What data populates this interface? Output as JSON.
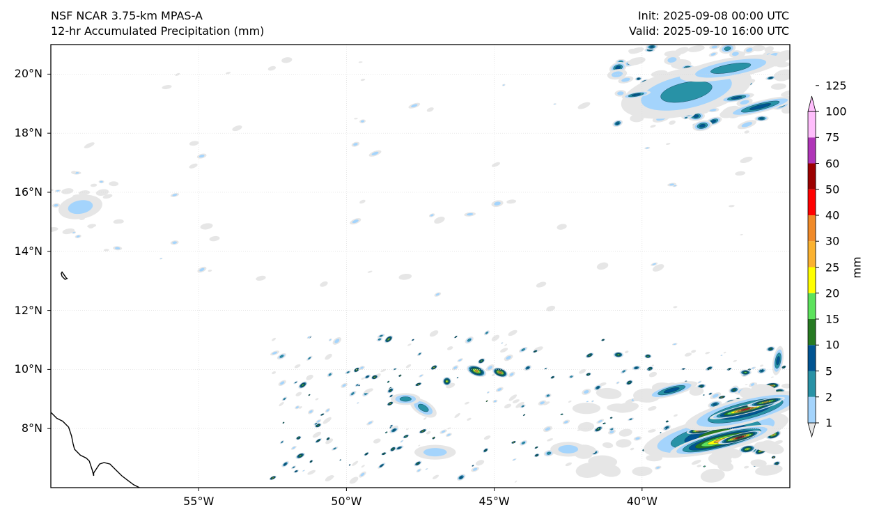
{
  "header": {
    "model": "NSF NCAR 3.75-km MPAS-A",
    "field": "12-hr Accumulated Precipitation (mm)",
    "init": "Init: 2025-09-08 00:00 UTC",
    "valid": "Valid: 2025-09-10 16:00 UTC"
  },
  "map": {
    "extent": {
      "lon_min": -60,
      "lon_max": -35,
      "lat_min": 6,
      "lat_max": 21
    },
    "lat_ticks": [
      {
        "value": 8,
        "label": "8°N"
      },
      {
        "value": 10,
        "label": "10°N"
      },
      {
        "value": 12,
        "label": "12°N"
      },
      {
        "value": 14,
        "label": "14°N"
      },
      {
        "value": 16,
        "label": "16°N"
      },
      {
        "value": 18,
        "label": "18°N"
      },
      {
        "value": 20,
        "label": "20°N"
      }
    ],
    "lon_ticks": [
      {
        "value": -55,
        "label": "55°W"
      },
      {
        "value": -50,
        "label": "50°W"
      },
      {
        "value": -45,
        "label": "45°W"
      },
      {
        "value": -40,
        "label": "40°W"
      }
    ],
    "coastline": [
      [
        -60,
        8.55
      ],
      [
        -59.8,
        8.35
      ],
      [
        -59.7,
        8.3
      ],
      [
        -59.6,
        8.25
      ],
      [
        -59.4,
        8.05
      ],
      [
        -59.3,
        7.75
      ],
      [
        -59.25,
        7.5
      ],
      [
        -59.2,
        7.3
      ],
      [
        -59.0,
        7.1
      ],
      [
        -58.8,
        7.0
      ],
      [
        -58.7,
        6.9
      ],
      [
        -58.6,
        6.6
      ],
      [
        -58.55,
        6.4
      ],
      [
        -58.55,
        6.5
      ],
      [
        -58.35,
        6.8
      ],
      [
        -58.2,
        6.85
      ],
      [
        -58.0,
        6.8
      ],
      [
        -57.8,
        6.6
      ],
      [
        -57.6,
        6.4
      ],
      [
        -57.4,
        6.25
      ],
      [
        -57.2,
        6.1
      ],
      [
        -57.0,
        6.0
      ]
    ],
    "island": [
      [
        -59.62,
        13.3
      ],
      [
        -59.55,
        13.2
      ],
      [
        -59.48,
        13.1
      ],
      [
        -59.45,
        13.08
      ],
      [
        -59.52,
        13.05
      ],
      [
        -59.62,
        13.15
      ],
      [
        -59.65,
        13.25
      ],
      [
        -59.62,
        13.3
      ]
    ],
    "cells": [
      {
        "lon": -37.5,
        "lat": 7.8,
        "w": 5.0,
        "h": 1.2,
        "rot": -12,
        "level": 4
      },
      {
        "lon": -37.3,
        "lat": 7.6,
        "w": 3.6,
        "h": 0.6,
        "rot": -14,
        "level": 7
      },
      {
        "lon": -36.7,
        "lat": 7.7,
        "w": 1.5,
        "h": 0.25,
        "rot": -15,
        "level": 10
      },
      {
        "lon": -38.0,
        "lat": 7.95,
        "w": 1.0,
        "h": 0.22,
        "rot": -10,
        "level": 10
      },
      {
        "lon": -36.5,
        "lat": 8.6,
        "w": 4.2,
        "h": 0.9,
        "rot": -14,
        "level": 4
      },
      {
        "lon": -36.5,
        "lat": 8.65,
        "w": 2.5,
        "h": 0.3,
        "rot": -14,
        "level": 9
      },
      {
        "lon": -35.8,
        "lat": 8.9,
        "w": 1.3,
        "h": 0.2,
        "rot": -12,
        "level": 7
      },
      {
        "lon": -35.4,
        "lat": 10.3,
        "w": 0.35,
        "h": 1.0,
        "rot": 10,
        "level": 3
      },
      {
        "lon": -45.6,
        "lat": 9.95,
        "w": 0.7,
        "h": 0.35,
        "rot": 20,
        "level": 7
      },
      {
        "lon": -44.8,
        "lat": 9.9,
        "w": 0.55,
        "h": 0.3,
        "rot": 20,
        "level": 8
      },
      {
        "lon": -46.6,
        "lat": 9.6,
        "w": 0.3,
        "h": 0.3,
        "rot": 0,
        "level": 6
      },
      {
        "lon": -47.4,
        "lat": 8.7,
        "w": 1.0,
        "h": 0.5,
        "rot": 30,
        "level": 2
      },
      {
        "lon": -39.0,
        "lat": 9.3,
        "w": 1.8,
        "h": 0.4,
        "rot": -15,
        "level": 3
      },
      {
        "lon": -40.8,
        "lat": 10.5,
        "w": 0.35,
        "h": 0.2,
        "rot": 0,
        "level": 5
      },
      {
        "lon": -39.8,
        "lat": 10.45,
        "w": 0.25,
        "h": 0.15,
        "rot": 0,
        "level": 5
      },
      {
        "lon": -36.5,
        "lat": 9.9,
        "w": 0.4,
        "h": 0.2,
        "rot": 0,
        "level": 5
      },
      {
        "lon": -38.5,
        "lat": 19.4,
        "w": 4.5,
        "h": 1.6,
        "rot": -12,
        "level": 2
      },
      {
        "lon": -37.0,
        "lat": 20.2,
        "w": 3.5,
        "h": 0.7,
        "rot": -10,
        "level": 2
      },
      {
        "lon": -36.0,
        "lat": 18.9,
        "w": 2.5,
        "h": 0.4,
        "rot": -14,
        "level": 3
      },
      {
        "lon": -36.8,
        "lat": 19.2,
        "w": 1.2,
        "h": 0.25,
        "rot": -10,
        "level": 3
      },
      {
        "lon": -40.2,
        "lat": 19.3,
        "w": 1.0,
        "h": 0.2,
        "rot": -10,
        "level": 3
      },
      {
        "lon": -59.0,
        "lat": 15.5,
        "w": 1.5,
        "h": 0.8,
        "rot": -10,
        "level": 1
      },
      {
        "lon": -47.0,
        "lat": 7.2,
        "w": 1.4,
        "h": 0.5,
        "rot": 0,
        "level": 1
      },
      {
        "lon": -42.5,
        "lat": 7.3,
        "w": 1.2,
        "h": 0.5,
        "rot": 0,
        "level": 1
      },
      {
        "lon": -48.0,
        "lat": 9.0,
        "w": 1.0,
        "h": 0.4,
        "rot": 0,
        "level": 2
      }
    ],
    "scatter_seed": 20250910
  },
  "colorbar": {
    "unit": "mm",
    "levels": [
      1,
      2,
      5,
      10,
      15,
      20,
      25,
      30,
      40,
      50,
      60,
      75,
      100,
      125
    ],
    "labels": [
      "1",
      "2",
      "5",
      "10",
      "15",
      "20",
      "25",
      "30",
      "40",
      "50",
      "60",
      "75",
      "100",
      "125"
    ],
    "colors": [
      "#e6e6e6",
      "#a4d4fc",
      "#2892a6",
      "#005492",
      "#267a22",
      "#5ce25c",
      "#ffff00",
      "#fbb230",
      "#f08a28",
      "#ff0000",
      "#9c0000",
      "#b035b8",
      "#ffbefc"
    ],
    "extend": "both"
  }
}
